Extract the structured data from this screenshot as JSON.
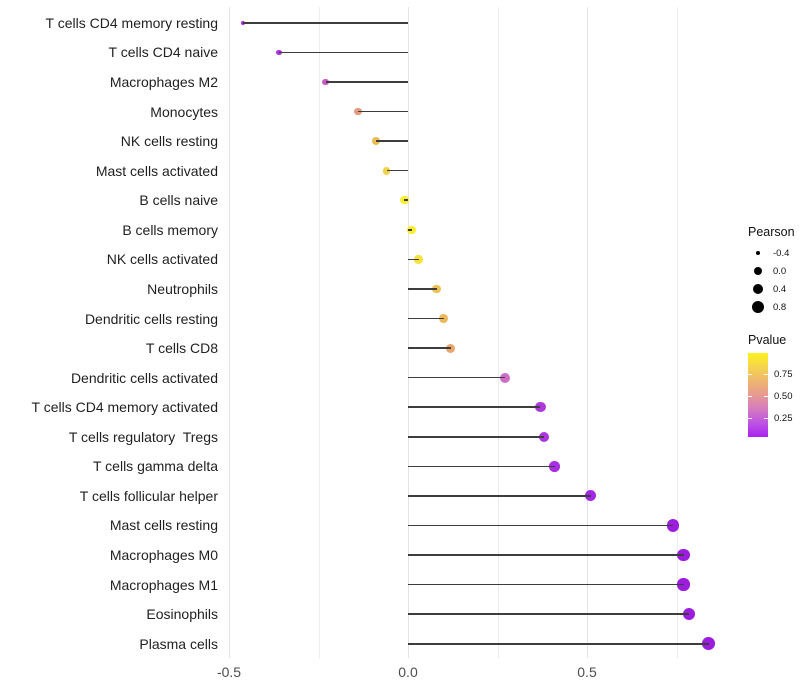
{
  "chart_data": {
    "type": "lollipop",
    "title": "",
    "xlabel": "",
    "ylabel": "",
    "xlim": [
      -0.49,
      0.86
    ],
    "grid": true,
    "x_ticks": [
      {
        "value": -0.5,
        "label": "-0.5"
      },
      {
        "value": 0.0,
        "label": "0.0"
      },
      {
        "value": 0.5,
        "label": "0.5"
      }
    ],
    "x_minor_ticks": [
      -0.25,
      0.25,
      0.75
    ],
    "size_encoding": "Pearson",
    "color_encoding": "Pvalue",
    "points": [
      {
        "category": "T cells CD4 memory resting",
        "pearson": -0.46,
        "dot_color": "#A72BE3"
      },
      {
        "category": "T cells CD4 naive",
        "pearson": -0.36,
        "dot_color": "#AC35DD"
      },
      {
        "category": "Macrophages M2",
        "pearson": -0.23,
        "dot_color": "#C75BBE"
      },
      {
        "category": "Monocytes",
        "pearson": -0.14,
        "dot_color": "#E69A7F"
      },
      {
        "category": "NK cells resting",
        "pearson": -0.09,
        "dot_color": "#ECBC55"
      },
      {
        "category": "Mast cells activated",
        "pearson": -0.06,
        "dot_color": "#F0D148"
      },
      {
        "category": "B cells naive",
        "pearson": -0.01,
        "dot_color": "#F9EE30"
      },
      {
        "category": "B cells memory",
        "pearson": 0.01,
        "dot_color": "#F9EE30"
      },
      {
        "category": "NK cells activated",
        "pearson": 0.03,
        "dot_color": "#F5E23F"
      },
      {
        "category": "Neutrophils",
        "pearson": 0.08,
        "dot_color": "#EEC254"
      },
      {
        "category": "Dendritic cells resting",
        "pearson": 0.1,
        "dot_color": "#ECB85C"
      },
      {
        "category": "T cells CD8",
        "pearson": 0.12,
        "dot_color": "#E8A56D"
      },
      {
        "category": "Dendritic cells activated",
        "pearson": 0.27,
        "dot_color": "#CE6EC7"
      },
      {
        "category": "T cells CD4 memory activated",
        "pearson": 0.37,
        "dot_color": "#AE39DB"
      },
      {
        "category": "T cells regulatory  Tregs",
        "pearson": 0.38,
        "dot_color": "#AC35DD"
      },
      {
        "category": "T cells gamma delta",
        "pearson": 0.41,
        "dot_color": "#A82EE1"
      },
      {
        "category": "T cells follicular helper",
        "pearson": 0.51,
        "dot_color": "#A227E7"
      },
      {
        "category": "Mast cells resting",
        "pearson": 0.74,
        "dot_color": "#9C1EDC"
      },
      {
        "category": "Macrophages M0",
        "pearson": 0.77,
        "dot_color": "#9C1EDC"
      },
      {
        "category": "Macrophages M1",
        "pearson": 0.77,
        "dot_color": "#9C1EDC"
      },
      {
        "category": "Eosinophils",
        "pearson": 0.785,
        "dot_color": "#9C1EDC"
      },
      {
        "category": "Plasma cells",
        "pearson": 0.84,
        "dot_color": "#9B1CDE"
      }
    ]
  },
  "legend": {
    "size_legend": {
      "title": "Pearson",
      "entries": [
        {
          "label": "-0.4",
          "value": -0.4
        },
        {
          "label": "0.0",
          "value": 0.0
        },
        {
          "label": "0.4",
          "value": 0.4
        },
        {
          "label": "0.8",
          "value": 0.8
        }
      ]
    },
    "color_legend": {
      "title": "Pvalue",
      "tick_labels": [
        "0.75",
        "0.50",
        "0.25"
      ],
      "gradient_stops_top_to_bottom": [
        "#FCF11C",
        "#F6D44E",
        "#EFB670",
        "#E59A92",
        "#D67BC0",
        "#BE53E3",
        "#A824F0"
      ]
    }
  },
  "colors": {
    "background": "#FFFFFF",
    "stem": "#3D3D3D",
    "grid_major": "#E4E4E4",
    "grid_minor": "#EDEDED",
    "axis_text": "#4D4D4D",
    "label_text": "#1F1F1F"
  }
}
